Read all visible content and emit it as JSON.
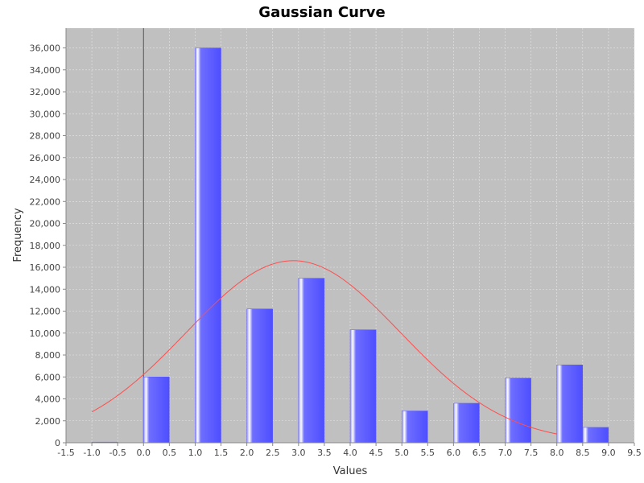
{
  "chart_data": {
    "type": "bar",
    "title": "Gaussian Curve",
    "xlabel": "Values",
    "ylabel": "Frequency",
    "xlim": [
      -1.5,
      9.5
    ],
    "ylim": [
      0,
      37800
    ],
    "grid": true,
    "bar_width": 0.5,
    "bars": [
      {
        "x": -1.0,
        "value": 60
      },
      {
        "x": 0.0,
        "value": 6000
      },
      {
        "x": 1.0,
        "value": 36000
      },
      {
        "x": 2.0,
        "value": 12200
      },
      {
        "x": 3.0,
        "value": 15000
      },
      {
        "x": 4.0,
        "value": 10300
      },
      {
        "x": 5.0,
        "value": 2900
      },
      {
        "x": 6.0,
        "value": 3600
      },
      {
        "x": 7.0,
        "value": 5900
      },
      {
        "x": 8.0,
        "value": 7100
      },
      {
        "x": 8.5,
        "value": 1400
      }
    ],
    "curve": {
      "type": "gaussian",
      "amplitude": 16600,
      "mean": 2.9,
      "sigma": 2.07,
      "x_range": [
        -1.0,
        8.0
      ]
    },
    "x_ticks": [
      "-1.5",
      "-1.0",
      "-0.5",
      "0.0",
      "0.5",
      "1.0",
      "1.5",
      "2.0",
      "2.5",
      "3.0",
      "3.5",
      "4.0",
      "4.5",
      "5.0",
      "5.5",
      "6.0",
      "6.5",
      "7.0",
      "7.5",
      "8.0",
      "8.5",
      "9.0",
      "9.5"
    ],
    "y_ticks": [
      "0",
      "2,000",
      "4,000",
      "6,000",
      "8,000",
      "10,000",
      "12,000",
      "14,000",
      "16,000",
      "18,000",
      "20,000",
      "22,000",
      "24,000",
      "26,000",
      "28,000",
      "30,000",
      "32,000",
      "34,000",
      "36,000"
    ],
    "colors": {
      "plot_background": "#c0c0c0",
      "bar": "#5b5bff",
      "curve": "#ff4d4d",
      "gridline": "#e6e6e6",
      "zero_line": "#555555"
    }
  }
}
